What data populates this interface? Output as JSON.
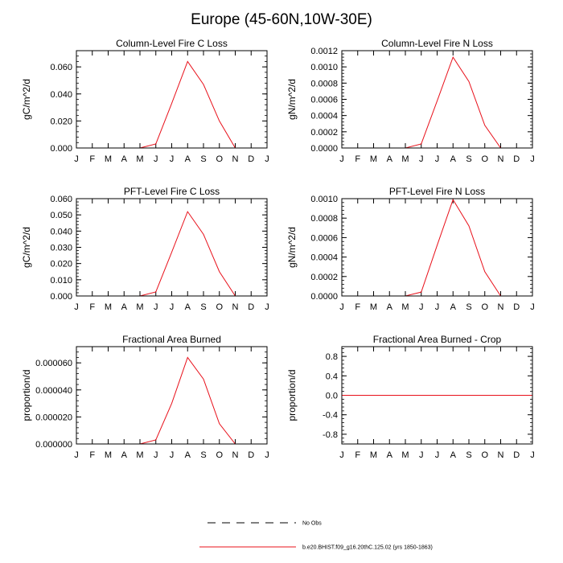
{
  "page_title": "Europe (45-60N,10W-30E)",
  "colors": {
    "series": "#e8101a",
    "axis": "#000000",
    "background": "#ffffff"
  },
  "legend": {
    "entries": [
      {
        "label": "No Obs",
        "style": "dashed",
        "color": "#000000"
      },
      {
        "label": "b.e20.BHIST.f09_g16.20thC.125.02 (yrs 1850-1863)",
        "style": "solid",
        "color": "#e8101a"
      }
    ]
  },
  "chart_data": [
    {
      "type": "line",
      "title": "Column-Level Fire C Loss",
      "ylabel": "gC/m^2/d",
      "categories": [
        "J",
        "F",
        "M",
        "A",
        "M",
        "J",
        "J",
        "A",
        "S",
        "O",
        "N",
        "D",
        "J"
      ],
      "ylim": [
        0,
        0.072
      ],
      "yticks": [
        0.0,
        0.02,
        0.04,
        0.06
      ],
      "ytick_labels": [
        "0.000",
        "0.020",
        "0.040",
        "0.060"
      ],
      "series": [
        {
          "name": "b.e20.BHIST.f09_g16.20thC.125.02 (yrs 1850-1863)",
          "values": [
            0,
            0,
            0,
            0,
            0,
            0.003,
            0.033,
            0.064,
            0.047,
            0.02,
            0,
            0,
            0
          ]
        }
      ]
    },
    {
      "type": "line",
      "title": "Column-Level Fire N Loss",
      "ylabel": "gN/m^2/d",
      "categories": [
        "J",
        "F",
        "M",
        "A",
        "M",
        "J",
        "J",
        "A",
        "S",
        "O",
        "N",
        "D",
        "J"
      ],
      "ylim": [
        0,
        0.0012
      ],
      "yticks": [
        0.0,
        0.0002,
        0.0004,
        0.0006,
        0.0008,
        0.001,
        0.0012
      ],
      "ytick_labels": [
        "0.0000",
        "0.0002",
        "0.0004",
        "0.0006",
        "0.0008",
        "0.0010",
        "0.0012"
      ],
      "series": [
        {
          "name": "b.e20.BHIST.f09_g16.20thC.125.02 (yrs 1850-1863)",
          "values": [
            0,
            0,
            0,
            0,
            0,
            5e-05,
            0.00058,
            0.00112,
            0.00082,
            0.00028,
            0,
            0,
            0
          ]
        }
      ]
    },
    {
      "type": "line",
      "title": "PFT-Level Fire C Loss",
      "ylabel": "gC/m^2/d",
      "categories": [
        "J",
        "F",
        "M",
        "A",
        "M",
        "J",
        "J",
        "A",
        "S",
        "O",
        "N",
        "D",
        "J"
      ],
      "ylim": [
        0,
        0.06
      ],
      "yticks": [
        0.0,
        0.01,
        0.02,
        0.03,
        0.04,
        0.05,
        0.06
      ],
      "ytick_labels": [
        "0.000",
        "0.010",
        "0.020",
        "0.030",
        "0.040",
        "0.050",
        "0.060"
      ],
      "series": [
        {
          "name": "b.e20.BHIST.f09_g16.20thC.125.02 (yrs 1850-1863)",
          "values": [
            0,
            0,
            0,
            0,
            0,
            0.0025,
            0.027,
            0.052,
            0.038,
            0.015,
            0,
            0,
            0
          ]
        }
      ]
    },
    {
      "type": "line",
      "title": "PFT-Level Fire N Loss",
      "ylabel": "gN/m^2/d",
      "categories": [
        "J",
        "F",
        "M",
        "A",
        "M",
        "J",
        "J",
        "A",
        "S",
        "O",
        "N",
        "D",
        "J"
      ],
      "ylim": [
        0,
        0.001
      ],
      "yticks": [
        0.0,
        0.0002,
        0.0004,
        0.0006,
        0.0008,
        0.001
      ],
      "ytick_labels": [
        "0.0000",
        "0.0002",
        "0.0004",
        "0.0006",
        "0.0008",
        "0.0010"
      ],
      "series": [
        {
          "name": "b.e20.BHIST.f09_g16.20thC.125.02 (yrs 1850-1863)",
          "values": [
            0,
            0,
            0,
            0,
            0,
            4e-05,
            0.00052,
            0.00099,
            0.00072,
            0.00025,
            0,
            0,
            0
          ]
        }
      ]
    },
    {
      "type": "line",
      "title": "Fractional Area Burned",
      "ylabel": "proportion/d",
      "categories": [
        "J",
        "F",
        "M",
        "A",
        "M",
        "J",
        "J",
        "A",
        "S",
        "O",
        "N",
        "D",
        "J"
      ],
      "ylim": [
        0,
        7.2e-05
      ],
      "yticks": [
        0.0,
        2e-05,
        4e-05,
        6e-05
      ],
      "ytick_labels": [
        "0.000000",
        "0.000020",
        "0.000040",
        "0.000060"
      ],
      "series": [
        {
          "name": "b.e20.BHIST.f09_g16.20thC.125.02 (yrs 1850-1863)",
          "values": [
            0,
            0,
            0,
            0,
            0,
            3e-06,
            3e-05,
            6.4e-05,
            4.8e-05,
            1.5e-05,
            0,
            0,
            0
          ]
        }
      ]
    },
    {
      "type": "line",
      "title": "Fractional Area Burned - Crop",
      "ylabel": "proportion/d",
      "categories": [
        "J",
        "F",
        "M",
        "A",
        "M",
        "J",
        "J",
        "A",
        "S",
        "O",
        "N",
        "D",
        "J"
      ],
      "ylim": [
        -1,
        1
      ],
      "yticks": [
        -0.8,
        -0.4,
        0.0,
        0.4,
        0.8
      ],
      "ytick_labels": [
        "-0.8",
        "-0.4",
        "0.0",
        "0.4",
        "0.8"
      ],
      "series": [
        {
          "name": "b.e20.BHIST.f09_g16.20thC.125.02 (yrs 1850-1863)",
          "values": [
            0,
            0,
            0,
            0,
            0,
            0,
            0,
            0,
            0,
            0,
            0,
            0,
            0
          ]
        }
      ]
    }
  ]
}
